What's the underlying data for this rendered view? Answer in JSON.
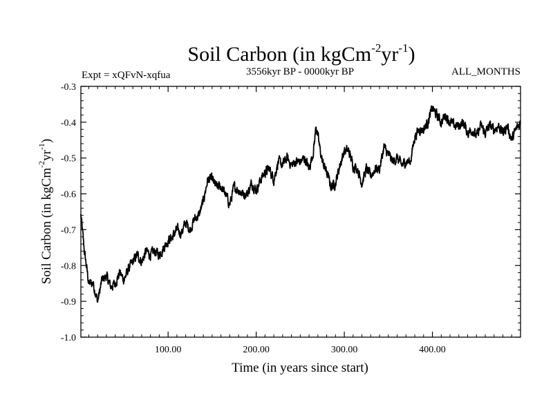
{
  "chart_data": {
    "type": "line",
    "title": {
      "main": "Soil Carbon (in kgCm",
      "sup1": "-2",
      "mid": "yr",
      "sup2": "-1",
      "end": ")"
    },
    "subtitle_left": "Expt = xQFvN-xqfua",
    "subtitle_center": "3556kyr BP - 0000kyr BP",
    "subtitle_right": "ALL_MONTHS",
    "xlabel": "Time (in years since start)",
    "ylabel": {
      "main": "Soil Carbon (in kgCm",
      "sup1": "-2",
      "mid": "yr",
      "sup2": "-1",
      "end": ")"
    },
    "xlim": [
      1,
      500
    ],
    "ylim": [
      -1.0,
      -0.3
    ],
    "xticks": [
      100,
      200,
      300,
      400
    ],
    "xtick_labels": [
      "100.00",
      "200.00",
      "300.00",
      "400.00"
    ],
    "yticks": [
      -1.0,
      -0.9,
      -0.8,
      -0.7,
      -0.6,
      -0.5,
      -0.4,
      -0.3
    ],
    "ytick_labels": [
      "-1.0",
      "-0.9",
      "-0.8",
      "-0.7",
      "-0.6",
      "-0.5",
      "-0.4",
      "-0.3"
    ],
    "series": [
      {
        "name": "soil-carbon",
        "color": "#000000",
        "x": [
          1,
          5,
          10,
          15,
          20,
          25,
          30,
          35,
          40,
          45,
          50,
          55,
          60,
          65,
          70,
          75,
          80,
          85,
          90,
          95,
          100,
          105,
          110,
          115,
          120,
          125,
          130,
          135,
          140,
          145,
          150,
          155,
          160,
          165,
          170,
          175,
          180,
          185,
          190,
          195,
          200,
          205,
          210,
          215,
          220,
          225,
          230,
          235,
          240,
          245,
          250,
          255,
          260,
          265,
          268,
          272,
          275,
          280,
          285,
          290,
          295,
          300,
          305,
          310,
          315,
          320,
          325,
          330,
          335,
          340,
          345,
          350,
          355,
          360,
          365,
          370,
          375,
          380,
          385,
          390,
          395,
          400,
          405,
          410,
          415,
          420,
          425,
          430,
          435,
          440,
          445,
          450,
          455,
          460,
          465,
          470,
          475,
          480,
          485,
          490,
          495,
          500
        ],
        "values": [
          -0.66,
          -0.76,
          -0.85,
          -0.85,
          -0.9,
          -0.84,
          -0.83,
          -0.86,
          -0.85,
          -0.82,
          -0.84,
          -0.81,
          -0.79,
          -0.77,
          -0.79,
          -0.76,
          -0.77,
          -0.76,
          -0.77,
          -0.75,
          -0.73,
          -0.72,
          -0.7,
          -0.71,
          -0.68,
          -0.7,
          -0.67,
          -0.66,
          -0.62,
          -0.56,
          -0.56,
          -0.58,
          -0.58,
          -0.6,
          -0.63,
          -0.58,
          -0.59,
          -0.6,
          -0.6,
          -0.57,
          -0.59,
          -0.56,
          -0.54,
          -0.53,
          -0.56,
          -0.51,
          -0.52,
          -0.5,
          -0.52,
          -0.51,
          -0.51,
          -0.5,
          -0.53,
          -0.48,
          -0.41,
          -0.47,
          -0.51,
          -0.54,
          -0.58,
          -0.57,
          -0.52,
          -0.48,
          -0.48,
          -0.52,
          -0.53,
          -0.57,
          -0.53,
          -0.55,
          -0.53,
          -0.53,
          -0.47,
          -0.49,
          -0.51,
          -0.5,
          -0.52,
          -0.51,
          -0.51,
          -0.44,
          -0.42,
          -0.42,
          -0.4,
          -0.36,
          -0.38,
          -0.4,
          -0.38,
          -0.4,
          -0.41,
          -0.41,
          -0.4,
          -0.43,
          -0.42,
          -0.44,
          -0.41,
          -0.43,
          -0.41,
          -0.42,
          -0.41,
          -0.43,
          -0.41,
          -0.45,
          -0.42,
          -0.4
        ]
      }
    ]
  }
}
